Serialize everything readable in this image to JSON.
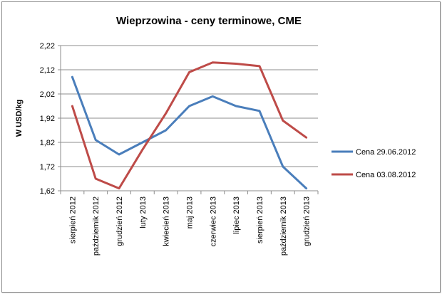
{
  "chart_data": {
    "type": "line",
    "title": "Wieprzowina - ceny terminowe, CME",
    "xlabel": "",
    "ylabel": "W USD/kg",
    "categories": [
      "sierpień 2012",
      "październik 2012",
      "grudzień 2012",
      "luty 2013",
      "kwiecień 2013",
      "maj 2013",
      "czerwiec 2013",
      "lipiec 2013",
      "sierpień 2013",
      "październik 2013",
      "grudzień 2013"
    ],
    "ylim": [
      1.62,
      2.22
    ],
    "yticks": [
      "1,62",
      "1,72",
      "1,82",
      "1,92",
      "2,02",
      "2,12",
      "2,22"
    ],
    "grid": true,
    "legend_position": "right",
    "series": [
      {
        "name": "Cena 29.06.2012",
        "color": "#4a7ebb",
        "values": [
          2.09,
          1.83,
          1.77,
          1.82,
          1.87,
          1.97,
          2.01,
          1.97,
          1.95,
          1.72,
          1.63
        ]
      },
      {
        "name": "Cena 03.08.2012",
        "color": "#be4b48",
        "values": [
          1.97,
          1.67,
          1.63,
          1.79,
          1.94,
          2.11,
          2.15,
          2.145,
          2.135,
          1.91,
          1.84
        ]
      }
    ]
  }
}
